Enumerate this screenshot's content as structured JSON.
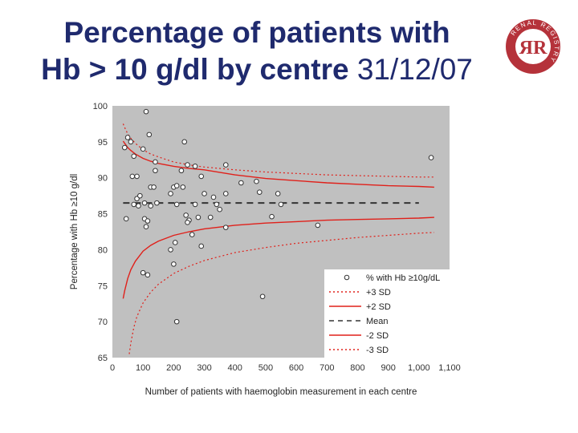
{
  "title": {
    "line1": "Percentage of patients with",
    "line2_bold": "Hb > 10 g/dl by centre",
    "line2_date": "31/12/07"
  },
  "logo": {
    "letters": "ЯR",
    "ring_text": "RENAL REGISTRY",
    "colors": {
      "ring": "#b5323a",
      "inner": "#ffffff"
    }
  },
  "colors": {
    "plot_bg": "#c0c0c0",
    "sd_line": "#e0201a",
    "mean_line": "#333333",
    "point_fill": "#ffffff",
    "point_stroke": "#333333"
  },
  "chart_data": {
    "type": "scatter",
    "title": "Percentage of patients with Hb > 10 g/dl by centre 31/12/07",
    "xlabel": "Number of patients with haemoglobin measurement in each centre",
    "ylabel": "Percentage with Hb ≥10 g/dl",
    "xlim": [
      0,
      1100
    ],
    "ylim": [
      65,
      100
    ],
    "x_ticks": [
      0,
      100,
      200,
      300,
      400,
      500,
      600,
      700,
      800,
      900,
      1000,
      1100
    ],
    "x_tick_labels": [
      "0",
      "100",
      "200",
      "300",
      "400",
      "500",
      "600",
      "700",
      "800",
      "900",
      "1,000",
      "1,100"
    ],
    "y_ticks": [
      65,
      70,
      75,
      80,
      85,
      90,
      95,
      100
    ],
    "y_tick_labels": [
      "65",
      "70",
      "75",
      "80",
      "85",
      "90",
      "95",
      "100"
    ],
    "mean": 86.5,
    "legend": {
      "position": "bottom-right",
      "entries": [
        {
          "label": "% with Hb ≥10g/dL",
          "style": "point"
        },
        {
          "label": "+3 SD",
          "style": "dotted"
        },
        {
          "label": "+2 SD",
          "style": "solid"
        },
        {
          "label": "Mean",
          "style": "dashed"
        },
        {
          "label": "-2 SD",
          "style": "solid"
        },
        {
          "label": "-3 SD",
          "style": "dotted"
        }
      ]
    },
    "points": [
      {
        "x": 110,
        "y": 99.2
      },
      {
        "x": 120,
        "y": 96
      },
      {
        "x": 50,
        "y": 95.6
      },
      {
        "x": 60,
        "y": 95
      },
      {
        "x": 40,
        "y": 94.2
      },
      {
        "x": 100,
        "y": 94
      },
      {
        "x": 235,
        "y": 95
      },
      {
        "x": 70,
        "y": 93
      },
      {
        "x": 140,
        "y": 92.2
      },
      {
        "x": 245,
        "y": 91.8
      },
      {
        "x": 270,
        "y": 91.6
      },
      {
        "x": 370,
        "y": 91.8
      },
      {
        "x": 1040,
        "y": 92.8
      },
      {
        "x": 140,
        "y": 91
      },
      {
        "x": 225,
        "y": 91
      },
      {
        "x": 65,
        "y": 90.2
      },
      {
        "x": 80,
        "y": 90.2
      },
      {
        "x": 290,
        "y": 90.2
      },
      {
        "x": 420,
        "y": 89.3
      },
      {
        "x": 470,
        "y": 89.5
      },
      {
        "x": 125,
        "y": 88.7
      },
      {
        "x": 135,
        "y": 88.7
      },
      {
        "x": 200,
        "y": 88.7
      },
      {
        "x": 210,
        "y": 88.9
      },
      {
        "x": 230,
        "y": 88.7
      },
      {
        "x": 190,
        "y": 87.8
      },
      {
        "x": 300,
        "y": 87.8
      },
      {
        "x": 330,
        "y": 87.3
      },
      {
        "x": 370,
        "y": 87.8
      },
      {
        "x": 480,
        "y": 88
      },
      {
        "x": 540,
        "y": 87.8
      },
      {
        "x": 80,
        "y": 87.1
      },
      {
        "x": 90,
        "y": 87.5
      },
      {
        "x": 70,
        "y": 86.3
      },
      {
        "x": 85,
        "y": 86.1
      },
      {
        "x": 105,
        "y": 86.5
      },
      {
        "x": 125,
        "y": 86.1
      },
      {
        "x": 145,
        "y": 86.5
      },
      {
        "x": 210,
        "y": 86.3
      },
      {
        "x": 270,
        "y": 86.3
      },
      {
        "x": 340,
        "y": 86.3
      },
      {
        "x": 550,
        "y": 86.3
      },
      {
        "x": 45,
        "y": 84.3
      },
      {
        "x": 105,
        "y": 84.3
      },
      {
        "x": 115,
        "y": 84
      },
      {
        "x": 240,
        "y": 84.8
      },
      {
        "x": 250,
        "y": 84.1
      },
      {
        "x": 280,
        "y": 84.5
      },
      {
        "x": 320,
        "y": 84.5
      },
      {
        "x": 350,
        "y": 85.6
      },
      {
        "x": 520,
        "y": 84.6
      },
      {
        "x": 110,
        "y": 83.2
      },
      {
        "x": 245,
        "y": 83.8
      },
      {
        "x": 370,
        "y": 83.1
      },
      {
        "x": 670,
        "y": 83.4
      },
      {
        "x": 260,
        "y": 82.1
      },
      {
        "x": 205,
        "y": 81
      },
      {
        "x": 290,
        "y": 80.5
      },
      {
        "x": 190,
        "y": 80
      },
      {
        "x": 200,
        "y": 78
      },
      {
        "x": 100,
        "y": 76.8
      },
      {
        "x": 115,
        "y": 76.5
      },
      {
        "x": 490,
        "y": 73.5
      },
      {
        "x": 210,
        "y": 70
      }
    ],
    "series": [
      {
        "name": "+3 SD",
        "style": "dotted",
        "x": [
          35,
          40,
          50,
          60,
          75,
          100,
          125,
          150,
          200,
          250,
          300,
          400,
          500,
          600,
          700,
          800,
          900,
          1000,
          1050
        ],
        "y": [
          97.5,
          97,
          96.1,
          95.5,
          94.8,
          93.9,
          93.3,
          92.9,
          92.2,
          91.8,
          91.5,
          91.1,
          90.8,
          90.6,
          90.4,
          90.3,
          90.2,
          90.1,
          90.1
        ]
      },
      {
        "name": "+2 SD",
        "style": "solid",
        "x": [
          35,
          40,
          50,
          60,
          75,
          100,
          125,
          150,
          200,
          250,
          300,
          400,
          500,
          600,
          700,
          800,
          900,
          1000,
          1050
        ],
        "y": [
          95.1,
          94.8,
          94.2,
          93.8,
          93.3,
          92.7,
          92.3,
          92,
          91.6,
          91.3,
          91.1,
          90.4,
          89.9,
          89.6,
          89.3,
          89.1,
          88.9,
          88.8,
          88.7
        ]
      },
      {
        "name": "-2 SD",
        "style": "solid",
        "x": [
          35,
          40,
          50,
          60,
          75,
          100,
          125,
          150,
          200,
          250,
          300,
          400,
          500,
          600,
          700,
          800,
          900,
          1000,
          1050
        ],
        "y": [
          73.2,
          74.3,
          76,
          77.2,
          78.4,
          79.8,
          80.6,
          81.2,
          82,
          82.5,
          82.9,
          83.4,
          83.7,
          83.9,
          84.1,
          84.2,
          84.3,
          84.4,
          84.5
        ]
      },
      {
        "name": "-3 SD",
        "style": "dotted",
        "x": [
          55,
          60,
          70,
          80,
          100,
          125,
          150,
          200,
          250,
          300,
          400,
          500,
          600,
          700,
          800,
          900,
          1000,
          1050
        ],
        "y": [
          65.5,
          67,
          69.2,
          70.7,
          72.6,
          74.1,
          75.2,
          76.7,
          77.7,
          78.5,
          79.6,
          80.3,
          80.9,
          81.3,
          81.7,
          82,
          82.3,
          82.4
        ]
      }
    ]
  }
}
